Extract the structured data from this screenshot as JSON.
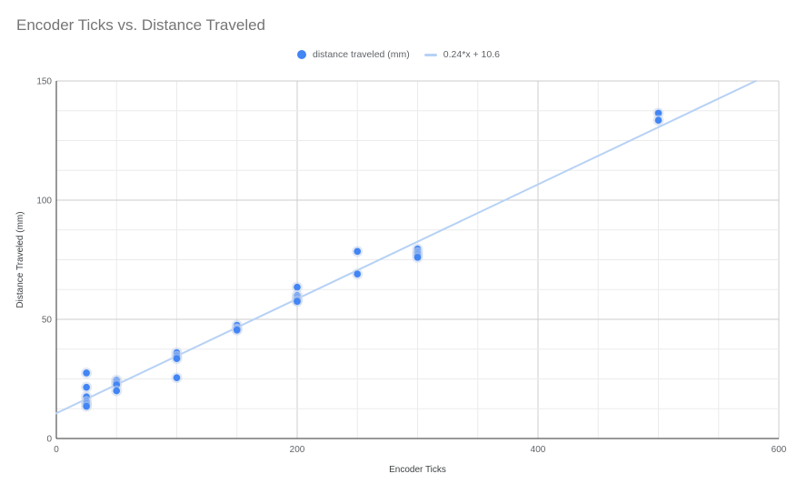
{
  "chart_data": {
    "type": "scatter",
    "title": "Encoder Ticks vs. Distance Traveled",
    "xlabel": "Encoder Ticks",
    "ylabel": "Distance Traveled (mm)",
    "xlim": [
      0,
      600
    ],
    "ylim": [
      0,
      150
    ],
    "x_ticks": [
      "0",
      "200",
      "400",
      "600"
    ],
    "y_ticks": [
      "0",
      "50",
      "100",
      "150"
    ],
    "grid": true,
    "legend_position": "top",
    "series": [
      {
        "name": "distance traveled (mm)",
        "color": "#4285f4",
        "points": [
          [
            25,
            27.5
          ],
          [
            25,
            21.5
          ],
          [
            25,
            17.5
          ],
          [
            25,
            15.5
          ],
          [
            25,
            14.5
          ],
          [
            25,
            13.5
          ],
          [
            50,
            24.5
          ],
          [
            50,
            23.5
          ],
          [
            50,
            22.5
          ],
          [
            50,
            20
          ],
          [
            100,
            36
          ],
          [
            100,
            34.5
          ],
          [
            100,
            33.5
          ],
          [
            100,
            25.5
          ],
          [
            150,
            47.5
          ],
          [
            150,
            46
          ],
          [
            150,
            45.5
          ],
          [
            200,
            63.5
          ],
          [
            200,
            60
          ],
          [
            200,
            59
          ],
          [
            200,
            58
          ],
          [
            200,
            57.5
          ],
          [
            250,
            78.5
          ],
          [
            250,
            69
          ],
          [
            300,
            79.5
          ],
          [
            300,
            78
          ],
          [
            300,
            77
          ],
          [
            300,
            76
          ],
          [
            500,
            136.5
          ],
          [
            500,
            133.5
          ]
        ]
      }
    ],
    "trendline": {
      "name": "0.24*x + 10.6",
      "slope": 0.24,
      "intercept": 10.6,
      "color": "#b6d1f5"
    }
  }
}
